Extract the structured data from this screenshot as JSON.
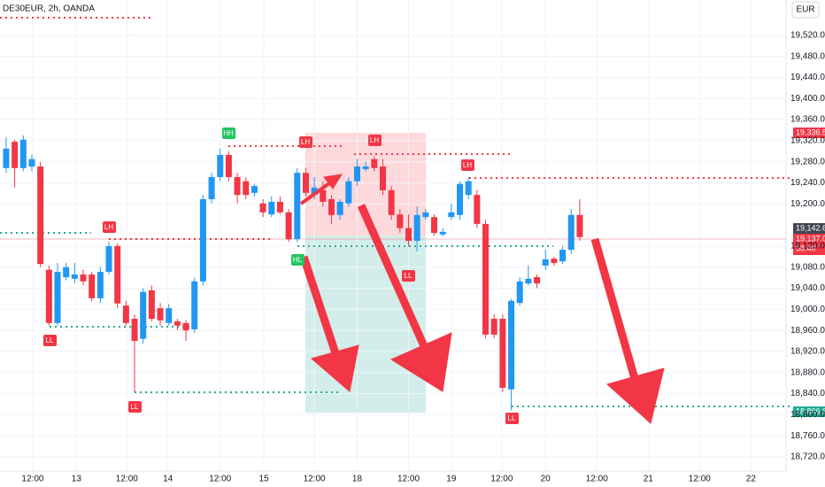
{
  "chart_data": {
    "type": "candlestick",
    "title": "DE30EUR, 2h, OANDA",
    "currency": "EUR",
    "x": [
      0,
      1,
      2,
      3,
      4,
      5,
      6,
      7,
      8,
      9,
      10,
      11,
      12,
      13,
      14,
      15,
      16,
      17,
      18,
      19,
      20,
      21,
      22,
      23,
      24,
      25,
      26,
      27,
      28,
      29,
      30,
      31,
      32,
      33,
      34,
      35,
      36,
      37,
      38,
      39,
      40,
      41,
      42,
      43,
      44,
      45,
      46,
      47,
      48,
      49,
      50,
      51,
      52,
      53,
      54,
      55,
      56,
      57,
      58,
      59,
      60,
      61,
      62,
      63,
      64,
      65,
      66,
      67
    ],
    "open": [
      19268,
      19318,
      19268,
      19271,
      19271,
      19075,
      18974,
      19061,
      19058,
      19066,
      19066,
      19021,
      19071,
      19120,
      19007,
      18982,
      18944,
      19036,
      19002,
      18974,
      18977,
      18974,
      18962,
      19053,
      19209,
      19251,
      19293,
      19251,
      19243,
      19221,
      19201,
      19180,
      19204,
      19184,
      19133,
      19259,
      19217,
      19226,
      19209,
      19179,
      19201,
      19243,
      19266,
      19285,
      19271,
      19226,
      19180,
      19154,
      19130,
      19175,
      19175,
      19142,
      19175,
      19179,
      19217,
      19217,
      19162,
      18982,
      18982,
      18848,
      19012,
      19049,
      19061,
      19083,
      19096,
      19091,
      19113,
      19179
    ],
    "high": [
      19327,
      19322,
      19330,
      19293,
      19280,
      19083,
      19088,
      19088,
      19088,
      19075,
      19071,
      19080,
      19128,
      19125,
      19016,
      18990,
      19040,
      19045,
      19012,
      19010,
      18982,
      18979,
      19060,
      19217,
      19259,
      19305,
      19300,
      19259,
      19251,
      19238,
      19209,
      19214,
      19214,
      19190,
      19268,
      19268,
      19251,
      19243,
      19217,
      19209,
      19251,
      19285,
      19280,
      19290,
      19285,
      19234,
      19190,
      19180,
      19195,
      19190,
      19180,
      19154,
      19200,
      19243,
      19251,
      19226,
      19170,
      18990,
      18990,
      19020,
      19061,
      19083,
      19066,
      19113,
      19100,
      19120,
      19190,
      19209
    ],
    "low": [
      19259,
      19231,
      19262,
      19262,
      19080,
      18969,
      18969,
      19055,
      19049,
      19045,
      19015,
      19012,
      19066,
      19002,
      18969,
      18843,
      18935,
      18977,
      18969,
      18969,
      18960,
      18940,
      18955,
      19045,
      19201,
      19243,
      19243,
      19201,
      19209,
      19214,
      19175,
      19175,
      19180,
      19128,
      19128,
      19214,
      19209,
      19195,
      19162,
      19170,
      19195,
      19234,
      19262,
      19262,
      19217,
      19170,
      19145,
      19120,
      19110,
      19170,
      19140,
      19138,
      19170,
      19170,
      19209,
      19154,
      18945,
      18945,
      18843,
      18808,
      19007,
      19045,
      19040,
      19075,
      19083,
      19086,
      19105,
      19130
    ],
    "close": [
      19305,
      19268,
      19322,
      19285,
      19086,
      18974,
      19071,
      19080,
      19066,
      19053,
      19021,
      19071,
      19120,
      19011,
      18974,
      18940,
      19033,
      18982,
      18979,
      19002,
      18969,
      18960,
      19053,
      19209,
      19251,
      19293,
      19251,
      19217,
      19217,
      19234,
      19184,
      19204,
      19184,
      19133,
      19259,
      19221,
      19231,
      19204,
      19179,
      19204,
      19243,
      19271,
      19271,
      19268,
      19226,
      19179,
      19154,
      19130,
      19179,
      19184,
      19145,
      19147,
      19184,
      19238,
      19243,
      19162,
      18952,
      18952,
      18851,
      19016,
      19053,
      19058,
      19049,
      19095,
      19088,
      19113,
      19179,
      19137
    ],
    "up_color": "#2196f3",
    "down_color": "#f23645",
    "xlim": [
      -0.72,
      91.1
    ],
    "xticks": [
      {
        "value": 3.1,
        "label": "12:00"
      },
      {
        "value": 8.2,
        "label": "13"
      },
      {
        "value": 14.1,
        "label": "12:00"
      },
      {
        "value": 18.9,
        "label": "14"
      },
      {
        "value": 25.0,
        "label": "12:00"
      },
      {
        "value": 30.1,
        "label": "15"
      },
      {
        "value": 36.0,
        "label": "12:00"
      },
      {
        "value": 41.0,
        "label": "18"
      },
      {
        "value": 47.0,
        "label": "12:00"
      },
      {
        "value": 52.0,
        "label": "19"
      },
      {
        "value": 57.9,
        "label": "12:00"
      },
      {
        "value": 63.0,
        "label": "20"
      },
      {
        "value": 69.0,
        "label": "12:00"
      },
      {
        "value": 75.0,
        "label": "21"
      },
      {
        "value": 81.0,
        "label": "12:00"
      },
      {
        "value": 87.0,
        "label": "22"
      }
    ],
    "ylim": [
      18693,
      19587
    ],
    "yticks": [
      {
        "value": 19520,
        "label": "19,520.0"
      },
      {
        "value": 19480,
        "label": "19,480.0"
      },
      {
        "value": 19440,
        "label": "19,440.0"
      },
      {
        "value": 19400,
        "label": "19,400.0"
      },
      {
        "value": 19360,
        "label": "19,360.0"
      },
      {
        "value": 19320,
        "label": "19,320.0"
      },
      {
        "value": 19280,
        "label": "19,280.0"
      },
      {
        "value": 19240,
        "label": "19,240.0"
      },
      {
        "value": 19200,
        "label": "19,200.0"
      },
      {
        "value": 19120,
        "label": "19,120.0"
      },
      {
        "value": 19080,
        "label": "19,080.0"
      },
      {
        "value": 19040,
        "label": "19,040.0"
      },
      {
        "value": 19000,
        "label": "19,000.0"
      },
      {
        "value": 18960,
        "label": "18,960.0"
      },
      {
        "value": 18920,
        "label": "18,920.0"
      },
      {
        "value": 18880,
        "label": "18,880.0"
      },
      {
        "value": 18840,
        "label": "18,840.0"
      },
      {
        "value": 18800,
        "label": "18,800.0"
      },
      {
        "value": 18760,
        "label": "18,760.0"
      },
      {
        "value": 18720,
        "label": "18,720.0"
      }
    ],
    "price_labels": [
      "19,336.5",
      "19,142.6",
      "19,137.0",
      "58:40",
      "18,806.6"
    ],
    "annotations": [
      "HH",
      "LH",
      "LH",
      "LH",
      "LH",
      "HL",
      "LL",
      "LL",
      "LL",
      "LL"
    ]
  }
}
